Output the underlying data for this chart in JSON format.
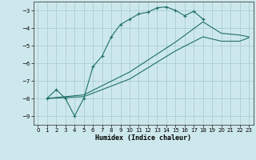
{
  "xlabel": "Humidex (Indice chaleur)",
  "xlim": [
    -0.5,
    23.5
  ],
  "ylim": [
    -9.5,
    -2.5
  ],
  "yticks": [
    -9,
    -8,
    -7,
    -6,
    -5,
    -4,
    -3
  ],
  "xticks": [
    0,
    1,
    2,
    3,
    4,
    5,
    6,
    7,
    8,
    9,
    10,
    11,
    12,
    13,
    14,
    15,
    16,
    17,
    18,
    19,
    20,
    21,
    22,
    23
  ],
  "background_color": "#cde8ec",
  "grid_color": "#aacdd4",
  "line_color": "#1e7068",
  "line1_x": [
    1,
    2,
    3,
    4,
    5,
    6,
    7,
    8,
    9,
    10,
    11,
    12,
    13,
    14,
    15,
    16,
    17,
    18
  ],
  "line1_y": [
    -8.0,
    -7.5,
    -8.0,
    -9.0,
    -8.0,
    -6.2,
    -5.6,
    -4.5,
    -3.8,
    -3.5,
    -3.2,
    -3.1,
    -2.85,
    -2.8,
    -3.0,
    -3.3,
    -3.05,
    -3.5
  ],
  "line2_x": [
    1,
    5,
    10,
    15,
    18,
    20,
    21,
    22,
    23
  ],
  "line2_y": [
    -8.0,
    -7.8,
    -6.5,
    -4.8,
    -3.65,
    -4.3,
    -4.35,
    -4.4,
    -4.5
  ],
  "line3_x": [
    1,
    5,
    10,
    15,
    18,
    20,
    21,
    22,
    23
  ],
  "line3_y": [
    -8.0,
    -7.9,
    -6.9,
    -5.3,
    -4.5,
    -4.75,
    -4.75,
    -4.75,
    -4.55
  ]
}
